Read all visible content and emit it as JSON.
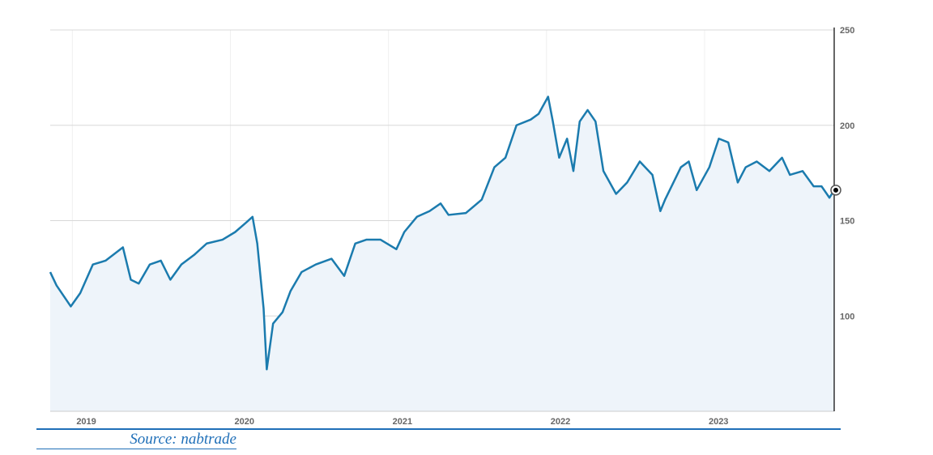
{
  "chart_data": {
    "type": "area",
    "title": "",
    "xlabel": "",
    "ylabel": "",
    "xlim": [
      2018.86,
      2023.82
    ],
    "ylim": [
      50,
      250
    ],
    "x_ticks": [
      "2019",
      "2020",
      "2021",
      "2022",
      "2023"
    ],
    "x_tick_values": [
      2019,
      2020,
      2021,
      2022,
      2023
    ],
    "y_ticks": [
      "100",
      "150",
      "200",
      "250"
    ],
    "y_tick_values": [
      100,
      150,
      200,
      250
    ],
    "y_axis_position": "right",
    "grid": true,
    "line_color": "#1b7bae",
    "fill_color": "#eef4fa",
    "series": [
      {
        "name": "Price",
        "x": [
          2018.86,
          2018.9,
          2018.99,
          2019.05,
          2019.13,
          2019.21,
          2019.32,
          2019.37,
          2019.42,
          2019.49,
          2019.56,
          2019.62,
          2019.69,
          2019.77,
          2019.85,
          2019.95,
          2020.03,
          2020.1,
          2020.14,
          2020.17,
          2020.21,
          2020.23,
          2020.27,
          2020.33,
          2020.38,
          2020.45,
          2020.54,
          2020.64,
          2020.72,
          2020.79,
          2020.86,
          2020.95,
          2021.05,
          2021.1,
          2021.18,
          2021.26,
          2021.33,
          2021.38,
          2021.49,
          2021.59,
          2021.67,
          2021.74,
          2021.81,
          2021.9,
          2021.95,
          2022.01,
          2022.04,
          2022.08,
          2022.13,
          2022.17,
          2022.21,
          2022.26,
          2022.31,
          2022.36,
          2022.44,
          2022.51,
          2022.59,
          2022.67,
          2022.72,
          2022.75,
          2022.85,
          2022.9,
          2022.95,
          2023.03,
          2023.09,
          2023.15,
          2023.21,
          2023.26,
          2023.33,
          2023.41,
          2023.49,
          2023.54,
          2023.62,
          2023.69,
          2023.74,
          2023.79,
          2023.82
        ],
        "y": [
          123,
          116,
          105,
          112,
          127,
          129,
          136,
          119,
          117,
          127,
          129,
          119,
          127,
          132,
          138,
          140,
          144,
          149,
          152,
          138,
          104,
          72,
          96,
          102,
          113,
          123,
          127,
          130,
          121,
          138,
          140,
          140,
          135,
          144,
          152,
          155,
          159,
          153,
          154,
          161,
          178,
          183,
          200,
          203,
          206,
          215,
          202,
          183,
          193,
          176,
          202,
          208,
          202,
          176,
          164,
          170,
          181,
          174,
          155,
          161,
          178,
          181,
          166,
          178,
          193,
          191,
          170,
          178,
          181,
          176,
          183,
          174,
          176,
          168,
          168,
          162,
          166
        ]
      }
    ]
  },
  "source": "Source: nabtrade"
}
